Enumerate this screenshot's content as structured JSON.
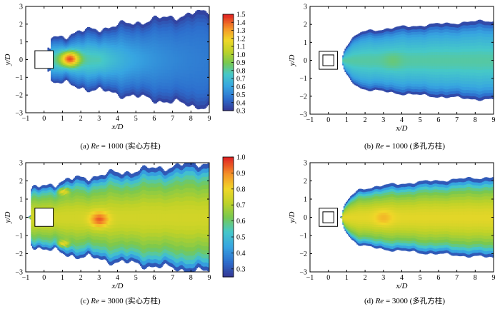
{
  "chart_data": [
    {
      "type": "heatmap",
      "caption": {
        "prefix": "(a) ",
        "re": "Re",
        "mid": " = 1000 (",
        "cn": "实心方柱",
        "suffix": ")"
      },
      "xlabel": "x/D",
      "ylabel": "y/D",
      "xlim": [
        -1,
        9
      ],
      "ylim": [
        -3,
        3
      ],
      "xticks": [
        "−1",
        "0",
        "1",
        "2",
        "3",
        "4",
        "5",
        "6",
        "7",
        "8",
        "9"
      ],
      "yticks": [
        "−3",
        "−2",
        "−1",
        "0",
        "1",
        "2",
        "3"
      ],
      "cylinder": "solid",
      "colorbar": {
        "min": 0.3,
        "max": 1.5,
        "ticks": [
          "0.3",
          "0.4",
          "0.5",
          "0.6",
          "0.7",
          "0.8",
          "0.9",
          "1.0",
          "1.1",
          "1.2",
          "1.3",
          "1.4",
          "1.5"
        ]
      },
      "features": {
        "front_edge_x": 0.2,
        "half_width_start": 1.1,
        "half_width_end": 2.7,
        "hotspot": {
          "x": 1.4,
          "y": 0.05,
          "value": 1.45
        },
        "core_level": 0.78,
        "wake_level": 0.45
      }
    },
    {
      "type": "heatmap",
      "caption": {
        "prefix": "(b) ",
        "re": "Re",
        "mid": " = 1000 (",
        "cn": "多孔方柱",
        "suffix": ")"
      },
      "xlabel": "x/D",
      "ylabel": "y/D",
      "xlim": [
        -1,
        9
      ],
      "ylim": [
        -3,
        3
      ],
      "xticks": [
        "−1",
        "0",
        "1",
        "2",
        "3",
        "4",
        "5",
        "6",
        "7",
        "8",
        "9"
      ],
      "yticks": [
        "−3",
        "−2",
        "−1",
        "0",
        "1",
        "2",
        "3"
      ],
      "cylinder": "porous",
      "features": {
        "front_edge_x": 1.2,
        "half_width_start": 1.3,
        "half_width_end": 2.2,
        "hotspot": {
          "x": 3.5,
          "y": 0.0,
          "value": 0.85
        },
        "core_level": 0.8,
        "wake_level": 0.6
      }
    },
    {
      "type": "heatmap",
      "caption": {
        "prefix": "(c) ",
        "re": "Re",
        "mid": " = 3000 (",
        "cn": "实心方柱",
        "suffix": ")"
      },
      "xlabel": "x/D",
      "ylabel": "y/D",
      "xlim": [
        -1,
        9
      ],
      "ylim": [
        -3,
        3
      ],
      "xticks": [
        "−1",
        "0",
        "1",
        "2",
        "3",
        "4",
        "5",
        "6",
        "7",
        "8",
        "9"
      ],
      "yticks": [
        "−3",
        "−2",
        "−1",
        "0",
        "1",
        "2",
        "3"
      ],
      "cylinder": "solid",
      "colorbar": {
        "min": 0.25,
        "max": 1.0,
        "ticks": [
          "0.3",
          "0.4",
          "0.5",
          "0.6",
          "0.7",
          "0.8",
          "0.9",
          "1.0"
        ]
      },
      "features": {
        "front_edge_x": -0.7,
        "half_width_start": 1.4,
        "half_width_end": 3.0,
        "hotspot": {
          "x": 3.0,
          "y": -0.1,
          "value": 0.95
        },
        "core_level": 0.75,
        "wake_level": 0.6
      }
    },
    {
      "type": "heatmap",
      "caption": {
        "prefix": "(d) ",
        "re": "Re",
        "mid": " = 3000 (",
        "cn": "多孔方柱",
        "suffix": ")"
      },
      "xlabel": "x/D",
      "ylabel": "y/D",
      "xlim": [
        -1,
        9
      ],
      "ylim": [
        -3,
        3
      ],
      "xticks": [
        "−1",
        "0",
        "1",
        "2",
        "3",
        "4",
        "5",
        "6",
        "7",
        "8",
        "9"
      ],
      "yticks": [
        "−3",
        "−2",
        "−1",
        "0",
        "1",
        "2",
        "3"
      ],
      "cylinder": "porous",
      "features": {
        "front_edge_x": 1.2,
        "half_width_start": 1.3,
        "half_width_end": 2.2,
        "hotspot": {
          "x": 3.0,
          "y": 0.0,
          "value": 0.85
        },
        "core_level": 0.78,
        "wake_level": 0.62
      }
    }
  ]
}
